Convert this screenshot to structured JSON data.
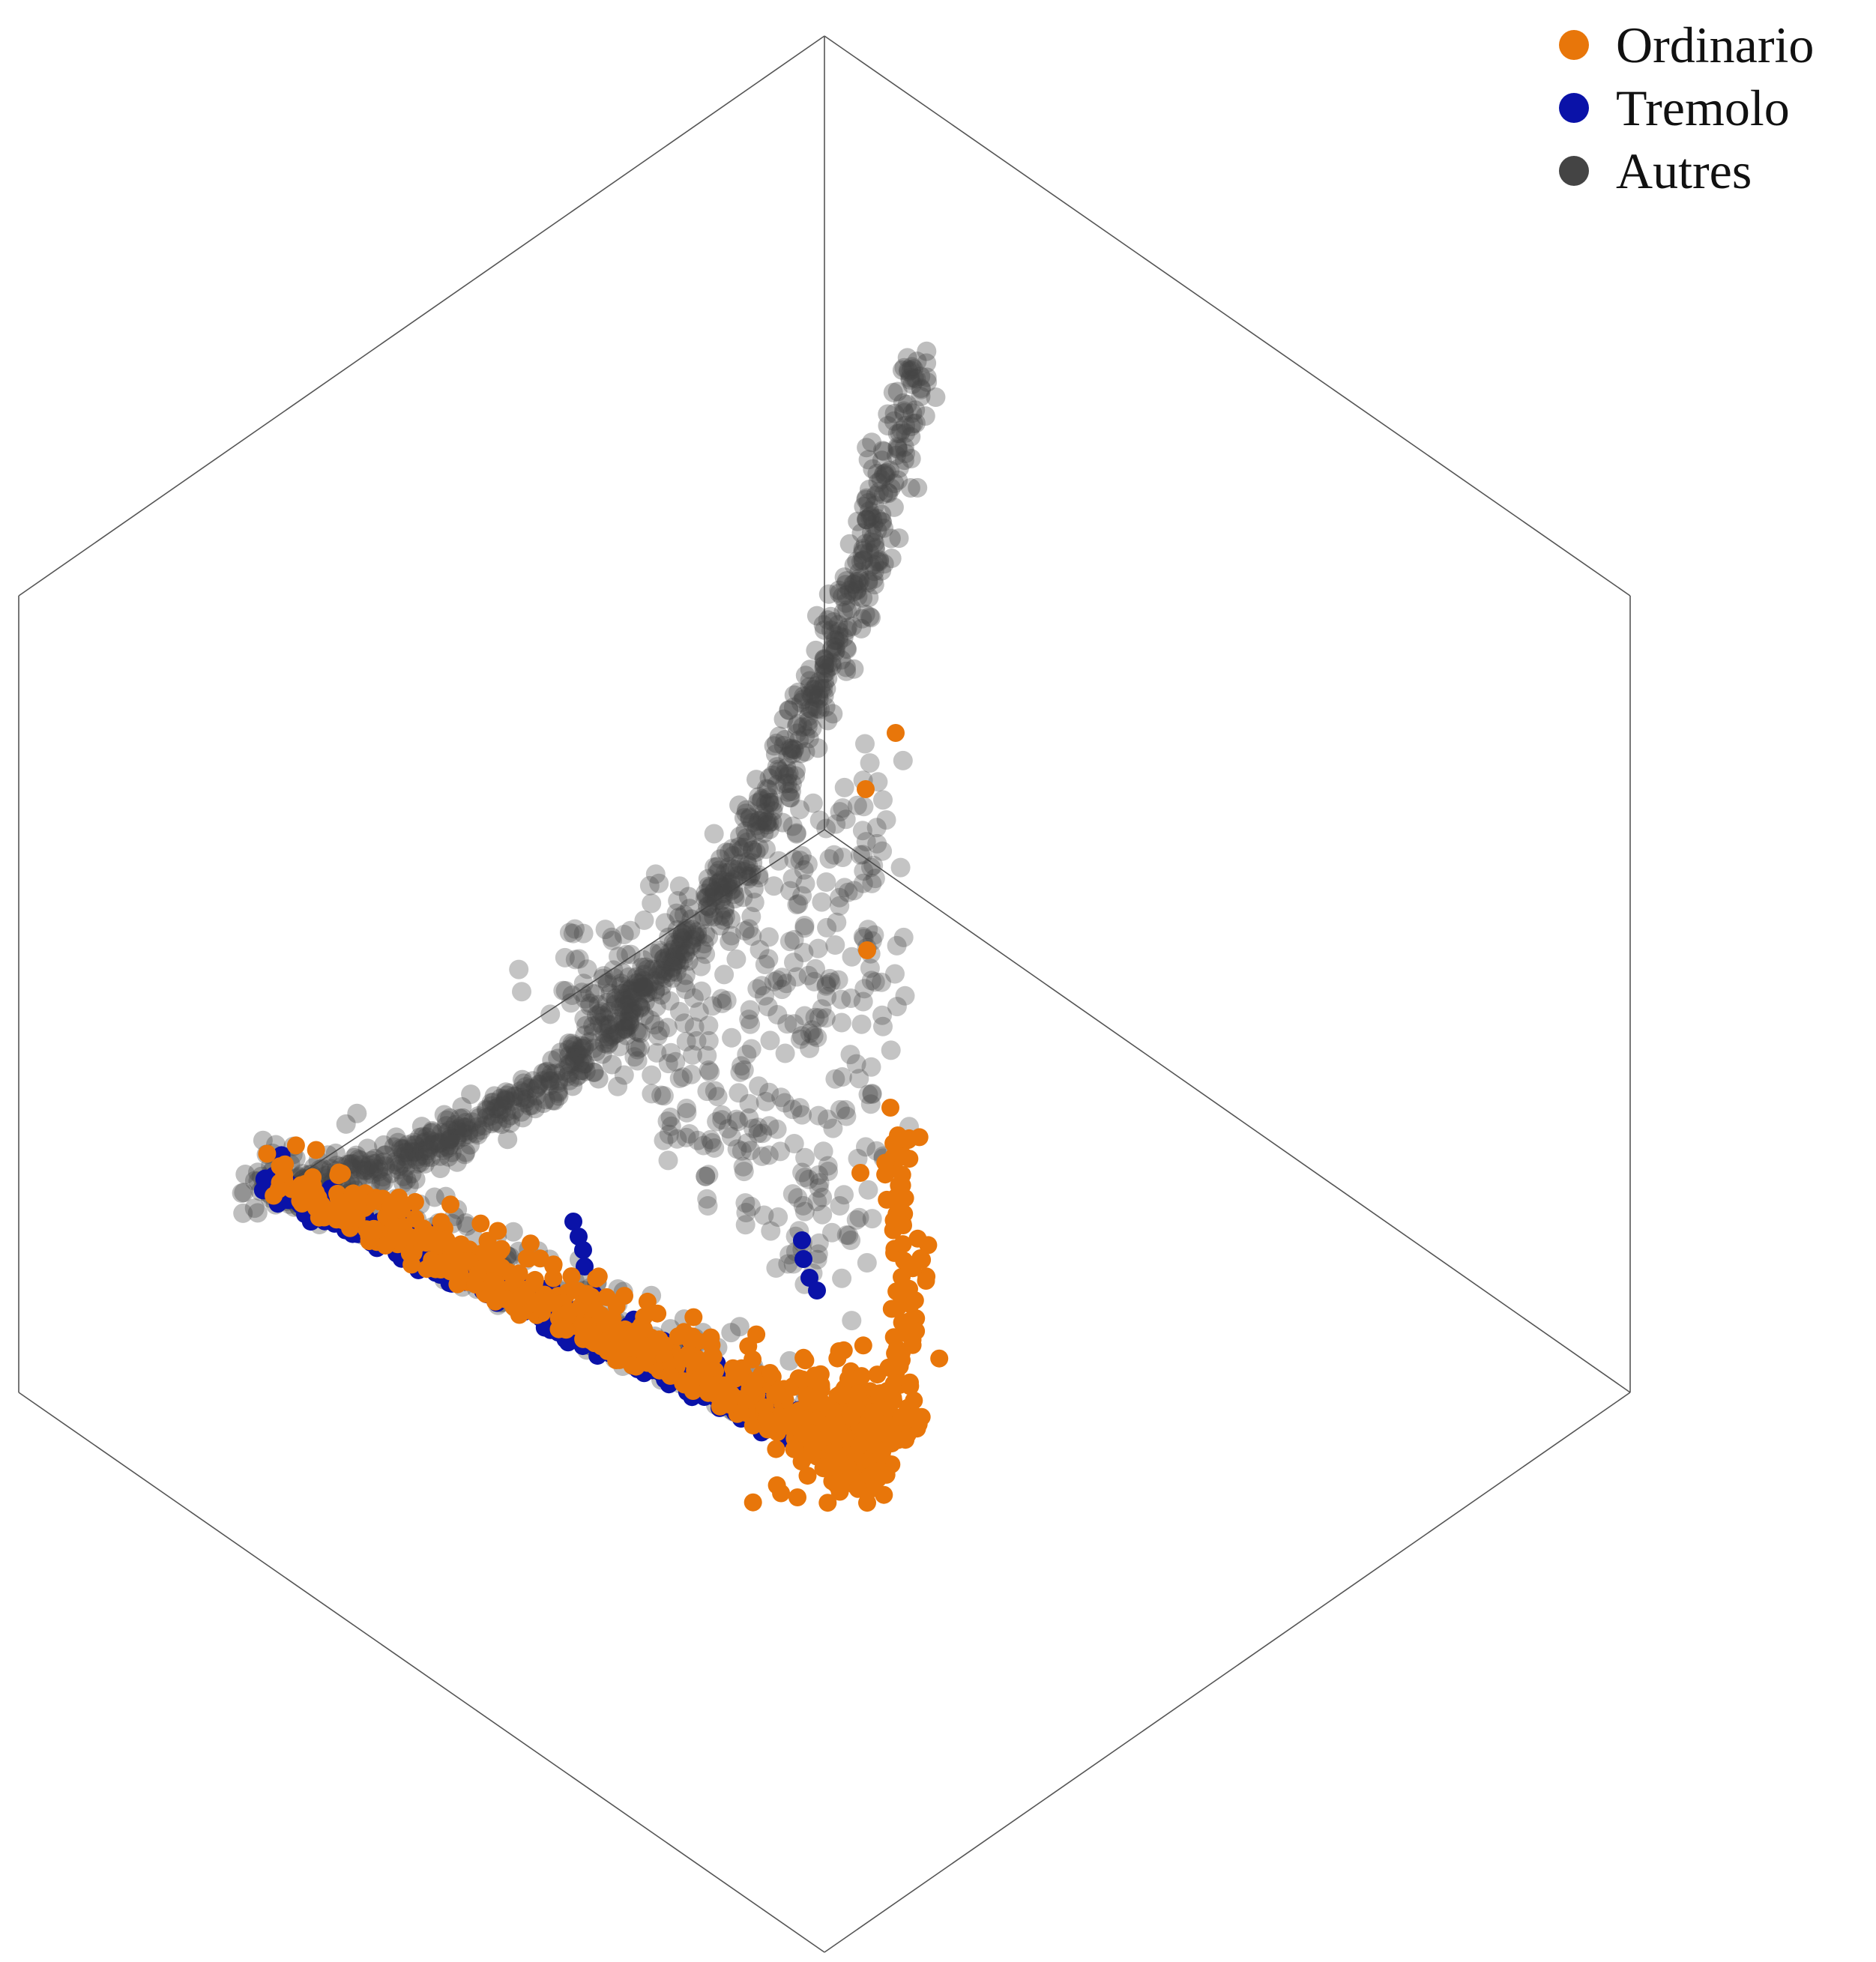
{
  "chart_data": {
    "type": "scatter",
    "title": "",
    "projection": "3d-isometric",
    "axes_box": "cube outline, no ticks, no axis labels",
    "grid": false,
    "legend_position": "top-right",
    "series": [
      {
        "name": "Ordinario",
        "color": "#e8760a",
        "opacity": 1.0,
        "count_shown": "dense",
        "region": "lower-left edge and lower-right corner of the point cloud",
        "sample_points": [
          [
            0.05,
            0.02,
            0.0
          ],
          [
            0.15,
            0.06,
            0.0
          ],
          [
            0.3,
            0.1,
            0.01
          ],
          [
            0.45,
            0.14,
            0.01
          ],
          [
            0.6,
            0.18,
            0.01
          ],
          [
            0.75,
            0.22,
            0.02
          ],
          [
            0.85,
            0.25,
            0.03
          ],
          [
            0.9,
            0.27,
            0.05
          ],
          [
            0.92,
            0.28,
            0.1
          ],
          [
            0.93,
            0.3,
            0.2
          ],
          [
            0.95,
            0.35,
            0.35
          ],
          [
            0.97,
            0.4,
            0.55
          ]
        ]
      },
      {
        "name": "Tremolo",
        "color": "#0a12a8",
        "opacity": 1.0,
        "count_shown": "dense",
        "region": "lower-left edge with two short vertical strands",
        "sample_points": [
          [
            0.1,
            0.04,
            0.0
          ],
          [
            0.25,
            0.08,
            0.0
          ],
          [
            0.4,
            0.12,
            0.01
          ],
          [
            0.55,
            0.16,
            0.01
          ],
          [
            0.7,
            0.2,
            0.01
          ],
          [
            0.8,
            0.23,
            0.02
          ],
          [
            0.35,
            0.1,
            0.12
          ],
          [
            0.7,
            0.22,
            0.14
          ]
        ]
      },
      {
        "name": "Autres",
        "color": "#444444",
        "opacity": 0.35,
        "count_shown": "very dense",
        "region": "curved ridge rising to the top plus diffuse interior",
        "sample_points": [
          [
            0.05,
            0.05,
            0.02
          ],
          [
            0.2,
            0.3,
            0.1
          ],
          [
            0.35,
            0.5,
            0.22
          ],
          [
            0.5,
            0.65,
            0.38
          ],
          [
            0.62,
            0.78,
            0.55
          ],
          [
            0.72,
            0.88,
            0.72
          ],
          [
            0.8,
            0.95,
            0.9
          ],
          [
            0.85,
            1.0,
            1.0
          ]
        ]
      }
    ]
  },
  "legend": {
    "items": [
      {
        "label": "Ordinario",
        "color": "#e8760a"
      },
      {
        "label": "Tremolo",
        "color": "#0a12a8"
      },
      {
        "label": "Autres",
        "color": "#444444"
      }
    ]
  }
}
